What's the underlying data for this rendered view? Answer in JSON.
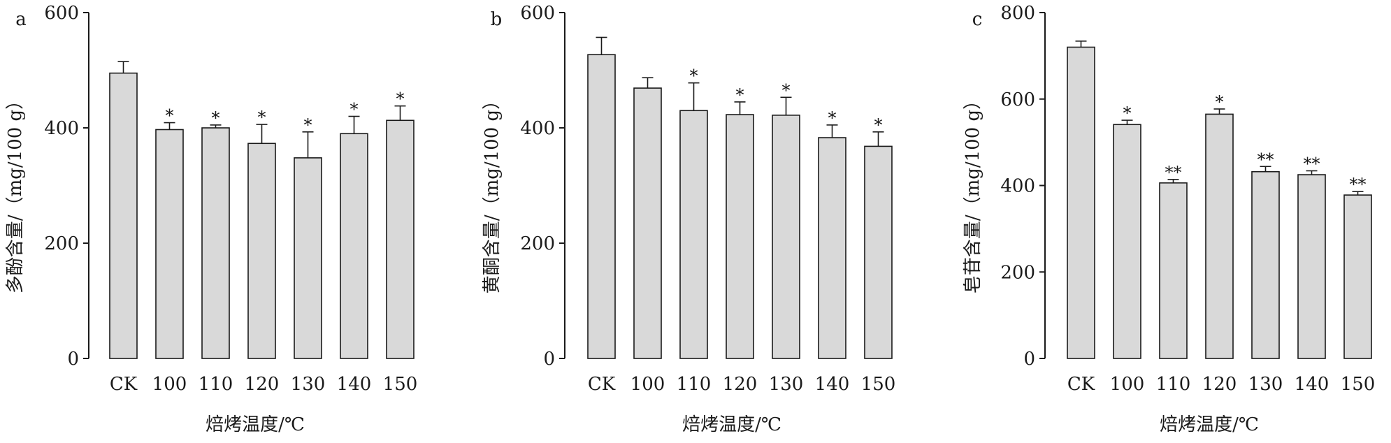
{
  "chart_data": [
    {
      "type": "bar",
      "panel_label": "a",
      "categories": [
        "CK",
        "100",
        "110",
        "120",
        "130",
        "140",
        "150"
      ],
      "values": [
        495,
        397,
        400,
        373,
        348,
        390,
        413
      ],
      "errors": [
        20,
        12,
        5,
        33,
        45,
        30,
        25
      ],
      "significance": [
        "",
        "*",
        "*",
        "*",
        "*",
        "*",
        "*"
      ],
      "xlabel": "焙烤温度/℃",
      "ylabel": "多酚含量/（mg/100 g）",
      "ylim": [
        0,
        600
      ],
      "yticks": [
        0,
        200,
        400,
        600
      ],
      "grid": false
    },
    {
      "type": "bar",
      "panel_label": "b",
      "categories": [
        "CK",
        "100",
        "110",
        "120",
        "130",
        "140",
        "150"
      ],
      "values": [
        527,
        469,
        430,
        423,
        422,
        383,
        368
      ],
      "errors": [
        30,
        18,
        48,
        22,
        31,
        22,
        25
      ],
      "significance": [
        "",
        "",
        "*",
        "*",
        "*",
        "*",
        "*"
      ],
      "xlabel": "焙烤温度/℃",
      "ylabel": "黄酮含量/（mg/100 g）",
      "ylim": [
        0,
        600
      ],
      "yticks": [
        0,
        200,
        400,
        600
      ],
      "grid": false
    },
    {
      "type": "bar",
      "panel_label": "c",
      "categories": [
        "CK",
        "100",
        "110",
        "120",
        "130",
        "140",
        "150"
      ],
      "values": [
        720,
        541,
        406,
        565,
        432,
        425,
        378
      ],
      "errors": [
        14,
        10,
        8,
        12,
        12,
        9,
        8
      ],
      "significance": [
        "",
        "*",
        "**",
        "*",
        "**",
        "**",
        "**"
      ],
      "xlabel": "焙烤温度/℃",
      "ylabel": "皂苷含量/（mg/100 g）",
      "ylim": [
        0,
        800
      ],
      "yticks": [
        0,
        200,
        400,
        600,
        800
      ],
      "grid": false
    }
  ]
}
